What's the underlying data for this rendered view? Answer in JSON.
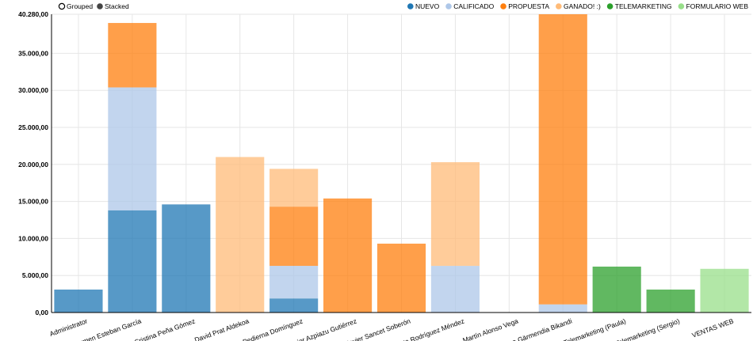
{
  "controls": {
    "grouped_label": "Grouped",
    "stacked_label": "Stacked",
    "selected": "Stacked"
  },
  "chart_data": {
    "type": "bar",
    "mode": "stacked",
    "grid": true,
    "legend_placement": "top-right",
    "ylim": [
      0,
      40280
    ],
    "yticks": [
      "0,00",
      "5.000,00",
      "10.000,00",
      "15.000,00",
      "20.000,00",
      "25.000,00",
      "30.000,00",
      "35.000,00",
      "40.280,00"
    ],
    "ytick_values": [
      0,
      5000,
      10000,
      15000,
      20000,
      25000,
      30000,
      35000,
      40280
    ],
    "categories": [
      "Administrator",
      "Carmen Esteban García",
      "Cristina Peña Gómez",
      "David Prat Aldekoa",
      "Diego Pedierna Domínguez",
      "Javier Azpiazu Gutiérrez",
      "Javier Sancet Soberón",
      "Marta Rodríguez Méndez",
      "Martín Alonso Vega",
      "Nerea Gärmendia Bikandi",
      "Telemarketing (Paula)",
      "Telemarketing (Sergio)",
      "VENTAS WEB"
    ],
    "series": [
      {
        "name": "NUEVO",
        "color": "#1f77b4",
        "values": [
          3100,
          13800,
          14600,
          0,
          1900,
          0,
          0,
          0,
          0,
          0,
          0,
          0,
          0
        ]
      },
      {
        "name": "CALIFICADO",
        "color": "#aec7e8",
        "values": [
          0,
          16600,
          0,
          0,
          4400,
          0,
          0,
          6300,
          0,
          1100,
          0,
          0,
          0
        ]
      },
      {
        "name": "PROPUESTA",
        "color": "#ff7f0e",
        "values": [
          0,
          8700,
          0,
          0,
          8000,
          15400,
          9300,
          0,
          0,
          39180,
          0,
          0,
          0
        ]
      },
      {
        "name": "GANADO! :)",
        "color": "#ffbb78",
        "values": [
          0,
          0,
          0,
          21000,
          5100,
          0,
          0,
          14000,
          0,
          0,
          0,
          0,
          0
        ]
      },
      {
        "name": "TELEMARKETING",
        "color": "#2ca02c",
        "values": [
          0,
          0,
          0,
          0,
          0,
          0,
          0,
          0,
          0,
          0,
          6200,
          3100,
          0
        ]
      },
      {
        "name": "FORMULARIO WEB",
        "color": "#98df8a",
        "values": [
          0,
          0,
          0,
          0,
          0,
          0,
          0,
          0,
          0,
          0,
          0,
          0,
          5900
        ]
      }
    ]
  }
}
